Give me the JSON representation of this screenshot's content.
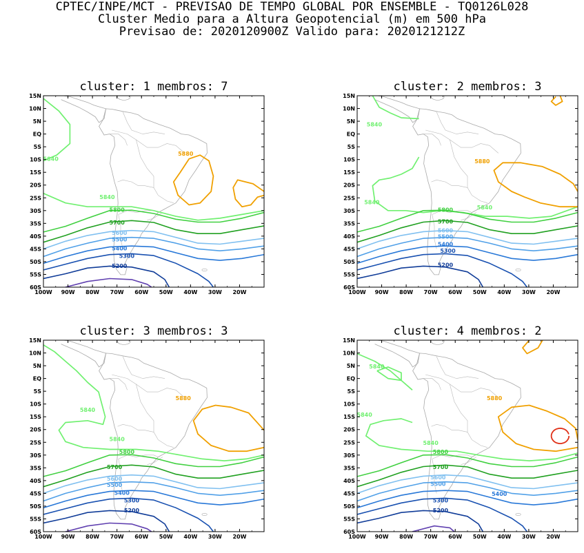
{
  "header": {
    "line1": "CPTEC/INPE/MCT - PREVISAO DE TEMPO GLOBAL POR ENSEMBLE - TQ0126L028",
    "line2": "Cluster Medio para a Altura Geopotencial (m) em 500 hPa",
    "line3": "Previsao de: 2020120900Z   Valido para: 2020121212Z"
  },
  "axes": {
    "lat_labels": [
      "15N",
      "10N",
      "5N",
      "EQ",
      "5S",
      "10S",
      "15S",
      "20S",
      "25S",
      "30S",
      "35S",
      "40S",
      "45S",
      "50S",
      "55S",
      "60S"
    ],
    "lon_labels": [
      "100W",
      "90W",
      "80W",
      "70W",
      "60W",
      "50W",
      "40W",
      "30W",
      "20W"
    ]
  },
  "colors": {
    "c5840": "#70f070",
    "c5880": "#f0a000",
    "c5800": "#40d040",
    "c5700": "#20a020",
    "c5600": "#80c0f0",
    "c5500": "#50a0e8",
    "c5400": "#2878d8",
    "c5300": "#1850b0",
    "c5200": "#103c98",
    "c5100": "#6040b0",
    "c5920": "#e03018"
  },
  "panels": [
    {
      "title": "cluster: 1   membros: 7",
      "labels": [
        {
          "text": "5880",
          "lon": -42,
          "lat": -8.5,
          "color": "#f0a000"
        },
        {
          "text": "5840",
          "lon": -97,
          "lat": -10.5,
          "color": "#70f070"
        },
        {
          "text": "5840",
          "lon": -74,
          "lat": -25.5,
          "color": "#70f070"
        },
        {
          "text": "5800",
          "lon": -70,
          "lat": -30.5,
          "color": "#40d040"
        },
        {
          "text": "5700",
          "lon": -70,
          "lat": -35.5,
          "color": "#20a020"
        },
        {
          "text": "5600",
          "lon": -69,
          "lat": -39.5,
          "color": "#80c0f0"
        },
        {
          "text": "5500",
          "lon": -69,
          "lat": -42,
          "color": "#50a0e8"
        },
        {
          "text": "5400",
          "lon": -69,
          "lat": -45.5,
          "color": "#2878d8"
        },
        {
          "text": "5300",
          "lon": -66,
          "lat": -48.5,
          "color": "#1850b0"
        },
        {
          "text": "5200",
          "lon": -69,
          "lat": -52.5,
          "color": "#103c98"
        }
      ]
    },
    {
      "title": "cluster: 2   membros: 3",
      "labels": [
        {
          "text": "5840",
          "lon": -93,
          "lat": 3,
          "color": "#70f070"
        },
        {
          "text": "5880",
          "lon": -49,
          "lat": -11.5,
          "color": "#f0a000"
        },
        {
          "text": "5840",
          "lon": -94,
          "lat": -27.5,
          "color": "#70f070"
        },
        {
          "text": "5840",
          "lon": -48,
          "lat": -29.5,
          "color": "#70f070"
        },
        {
          "text": "5800",
          "lon": -64,
          "lat": -30.5,
          "color": "#40d040"
        },
        {
          "text": "5700",
          "lon": -64,
          "lat": -35,
          "color": "#20a020"
        },
        {
          "text": "5600",
          "lon": -64,
          "lat": -38.5,
          "color": "#80c0f0"
        },
        {
          "text": "5500",
          "lon": -64,
          "lat": -41,
          "color": "#50a0e8"
        },
        {
          "text": "5400",
          "lon": -64,
          "lat": -44,
          "color": "#2878d8"
        },
        {
          "text": "5300",
          "lon": -63,
          "lat": -46.5,
          "color": "#1850b0"
        },
        {
          "text": "5200",
          "lon": -64,
          "lat": -52,
          "color": "#103c98"
        }
      ]
    },
    {
      "title": "cluster: 3   membros: 3",
      "labels": [
        {
          "text": "5880",
          "lon": -43,
          "lat": -8.5,
          "color": "#f0a000"
        },
        {
          "text": "5840",
          "lon": -82,
          "lat": -13,
          "color": "#70f070"
        },
        {
          "text": "5840",
          "lon": -70,
          "lat": -24.5,
          "color": "#70f070"
        },
        {
          "text": "5800",
          "lon": -66,
          "lat": -29.5,
          "color": "#40d040"
        },
        {
          "text": "5700",
          "lon": -71,
          "lat": -35.5,
          "color": "#20a020"
        },
        {
          "text": "5600",
          "lon": -71,
          "lat": -40,
          "color": "#80c0f0"
        },
        {
          "text": "5500",
          "lon": -71,
          "lat": -42.5,
          "color": "#50a0e8"
        },
        {
          "text": "5400",
          "lon": -68,
          "lat": -45.5,
          "color": "#2878d8"
        },
        {
          "text": "5300",
          "lon": -64,
          "lat": -48.5,
          "color": "#1850b0"
        },
        {
          "text": "5200",
          "lon": -64,
          "lat": -52.5,
          "color": "#103c98"
        }
      ]
    },
    {
      "title": "cluster: 4   membros: 2",
      "labels": [
        {
          "text": "5840",
          "lon": -92,
          "lat": 4,
          "color": "#70f070"
        },
        {
          "text": "5880",
          "lon": -44,
          "lat": -8.5,
          "color": "#f0a000"
        },
        {
          "text": "5840",
          "lon": -97,
          "lat": -15,
          "color": "#70f070"
        },
        {
          "text": "5840",
          "lon": -70,
          "lat": -26,
          "color": "#70f070"
        },
        {
          "text": "5800",
          "lon": -66,
          "lat": -29.5,
          "color": "#40d040"
        },
        {
          "text": "5700",
          "lon": -66,
          "lat": -35.5,
          "color": "#20a020"
        },
        {
          "text": "5600",
          "lon": -67,
          "lat": -39.5,
          "color": "#80c0f0"
        },
        {
          "text": "5500",
          "lon": -67,
          "lat": -42,
          "color": "#50a0e8"
        },
        {
          "text": "5400",
          "lon": -42,
          "lat": -46,
          "color": "#2878d8"
        },
        {
          "text": "5300",
          "lon": -66,
          "lat": -48.5,
          "color": "#1850b0"
        },
        {
          "text": "5200",
          "lon": -66,
          "lat": -52.5,
          "color": "#103c98"
        }
      ]
    }
  ]
}
